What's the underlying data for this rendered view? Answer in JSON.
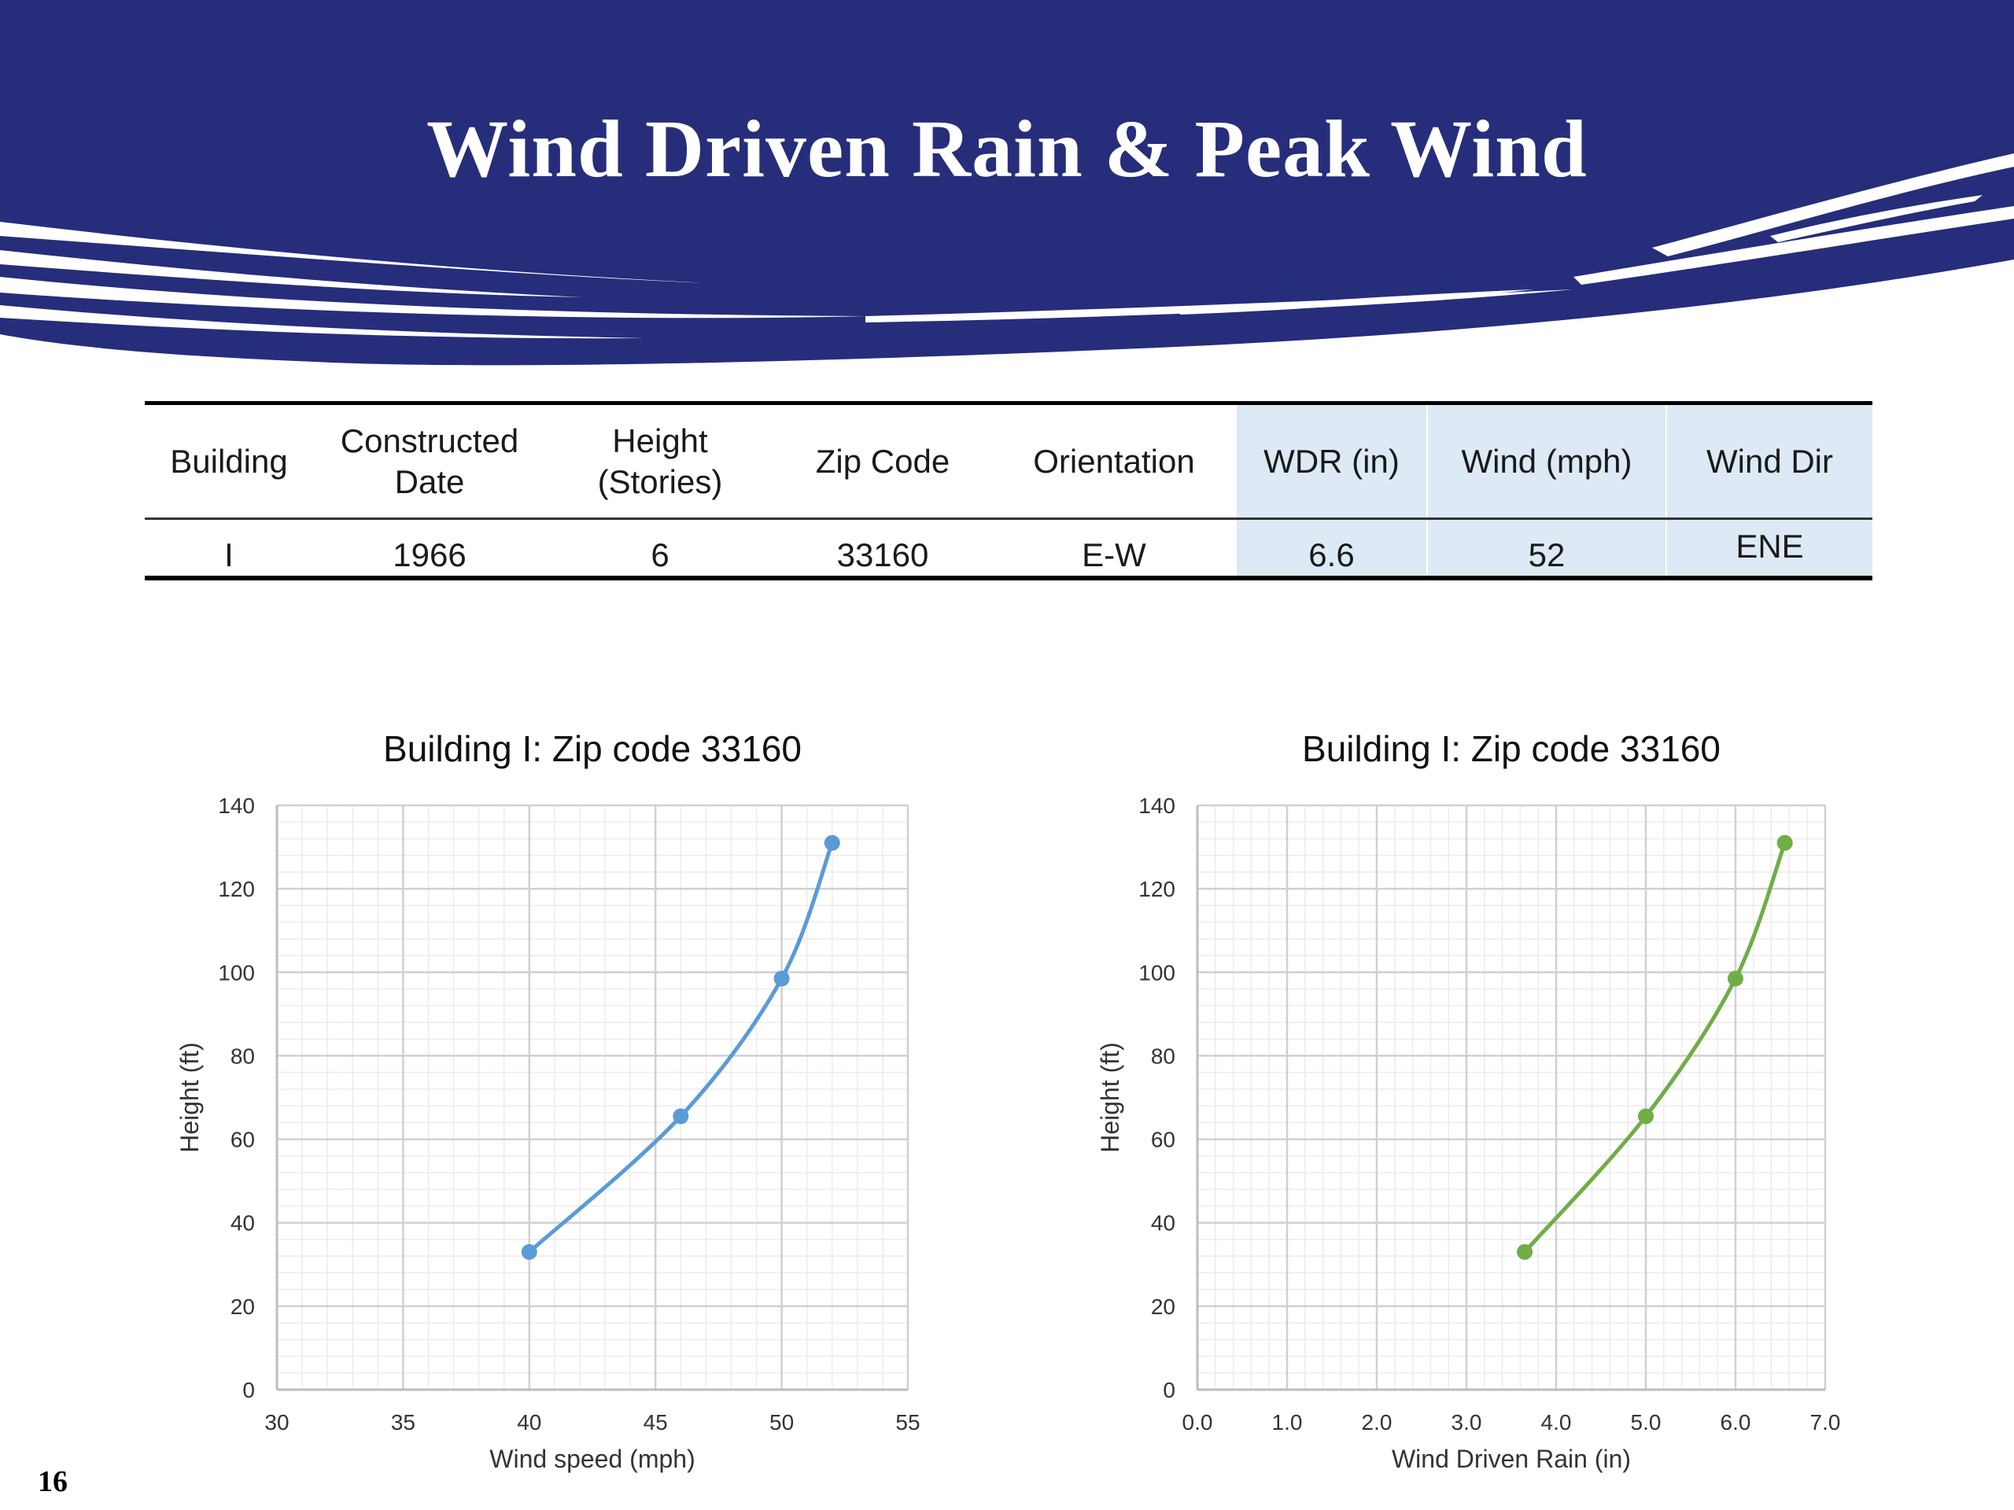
{
  "title": "Wind Driven Rain & Peak Wind",
  "page_number": "16",
  "colors": {
    "banner": "#262d7a",
    "highlight": "#dde9f4",
    "series_wind": "#5b9bd5",
    "series_wdr": "#70ad47"
  },
  "table": {
    "headers": [
      {
        "line1": "Building",
        "line2": ""
      },
      {
        "line1": "Constructed",
        "line2": "Date"
      },
      {
        "line1": "Height",
        "line2": "(Stories)"
      },
      {
        "line1": "Zip Code",
        "line2": ""
      },
      {
        "line1": "Orientation",
        "line2": ""
      },
      {
        "line1": "WDR (in)",
        "line2": ""
      },
      {
        "line1": "Wind  (mph)",
        "line2": ""
      },
      {
        "line1": "Wind Dir",
        "line2": ""
      }
    ],
    "row": [
      "I",
      "1966",
      "6",
      "33160",
      "E-W",
      "6.6",
      "52",
      "ENE"
    ]
  },
  "chart_data": [
    {
      "type": "scatter",
      "title": "Building I: Zip code 33160",
      "xlabel": "Wind speed (mph)",
      "ylabel": "Height (ft)",
      "xlim": [
        30,
        55
      ],
      "ylim": [
        0,
        140
      ],
      "x_ticks": [
        30,
        35,
        40,
        45,
        50,
        55
      ],
      "y_ticks": [
        0,
        20,
        40,
        60,
        80,
        100,
        120,
        140
      ],
      "grid": true,
      "smooth": true,
      "color": "#5b9bd5",
      "series": [
        {
          "x": [
            40,
            46,
            50,
            52
          ],
          "y": [
            33,
            65.5,
            98.5,
            131
          ]
        }
      ]
    },
    {
      "type": "scatter",
      "title": "Building I: Zip code 33160",
      "xlabel": "Wind Driven Rain (in)",
      "ylabel": "Height (ft)",
      "xlim": [
        0,
        7
      ],
      "ylim": [
        0,
        140
      ],
      "x_ticks": [
        "0.0",
        "1.0",
        "2.0",
        "3.0",
        "4.0",
        "5.0",
        "6.0",
        "7.0"
      ],
      "y_ticks": [
        0,
        20,
        40,
        60,
        80,
        100,
        120,
        140
      ],
      "grid": true,
      "smooth": true,
      "color": "#70ad47",
      "series": [
        {
          "x": [
            3.65,
            5.0,
            6.0,
            6.55
          ],
          "y": [
            33,
            65.5,
            98.5,
            131
          ]
        }
      ]
    }
  ]
}
